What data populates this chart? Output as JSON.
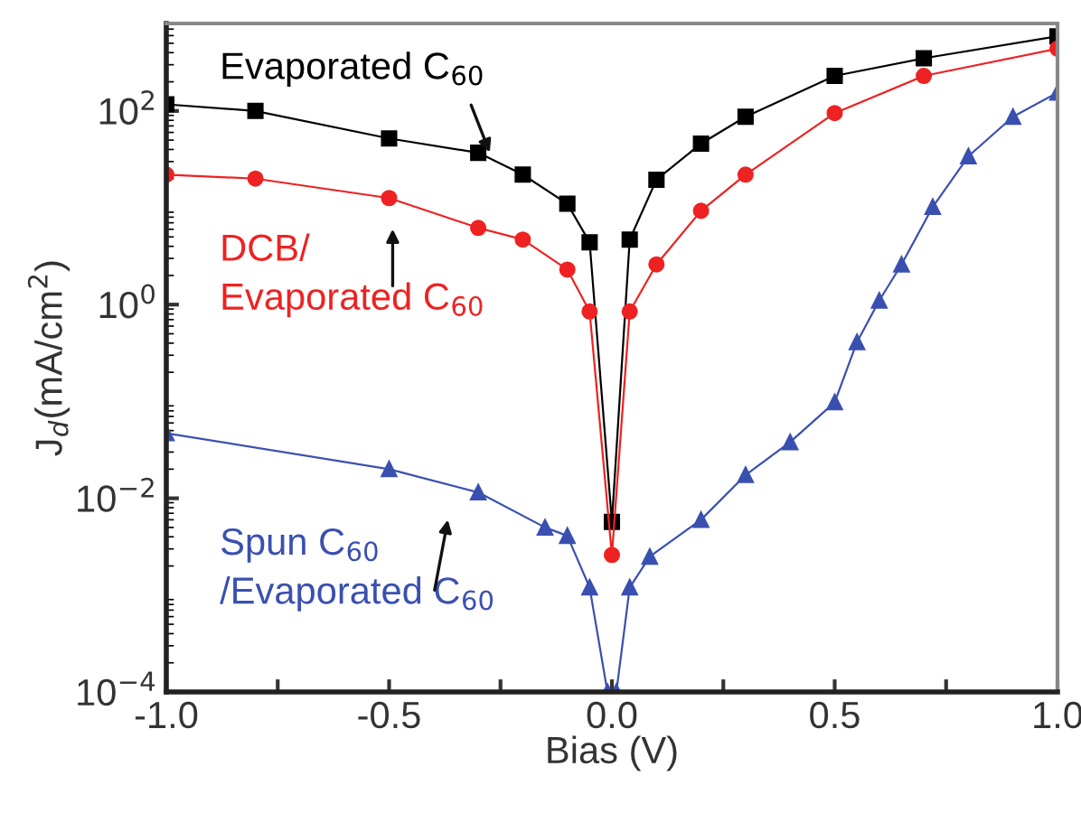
{
  "chart_data": {
    "type": "line",
    "xlabel": "Bias (V)",
    "ylabel": "J$_{d}$(mA/cm$^{2}$)",
    "log": "y",
    "grid": false,
    "line_style": "solid",
    "xlim": [
      -1.0,
      1.0
    ],
    "xticks": [
      {
        "value": -1.0,
        "label": "-1.0"
      },
      {
        "value": -0.75,
        "label": null
      },
      {
        "value": -0.5,
        "label": "-0.5"
      },
      {
        "value": -0.25,
        "label": null
      },
      {
        "value": 0.0,
        "label": "0.0"
      },
      {
        "value": 0.25,
        "label": null
      },
      {
        "value": 0.5,
        "label": "0.5"
      },
      {
        "value": 0.75,
        "label": null
      },
      {
        "value": 1.0,
        "label": "1.0"
      }
    ],
    "ylim": [
      0.0001,
      800
    ],
    "yticks": [
      {
        "value": 0.0001,
        "label": "10$^{−4}$"
      },
      {
        "value": 0.01,
        "label": "10$^{−2}$"
      },
      {
        "value": 1,
        "label": "10$^{0}$"
      },
      {
        "value": 100,
        "label": "10$^{2}$"
      }
    ],
    "series": [
      {
        "name": "Evaporated C$_{60}$",
        "color": "#000000",
        "marker": "square",
        "x": [
          -1.0,
          -0.8,
          -0.5,
          -0.3,
          -0.2,
          -0.1,
          -0.05,
          0.0,
          0.04,
          0.1,
          0.2,
          0.3,
          0.5,
          0.7,
          1.0
        ],
        "values": [
          117,
          100,
          52,
          37,
          22,
          11,
          4.4,
          0.0057,
          4.7,
          19.5,
          46,
          87,
          230,
          350,
          590
        ]
      },
      {
        "name": "DCB/\nEvaporated C$_{60}$",
        "color": "#ee2222",
        "marker": "circle",
        "x": [
          -1.0,
          -0.8,
          -0.5,
          -0.3,
          -0.2,
          -0.1,
          -0.05,
          0.0,
          0.04,
          0.1,
          0.2,
          0.3,
          0.5,
          0.7,
          1.0
        ],
        "values": [
          22,
          20,
          12.6,
          6.2,
          4.7,
          2.3,
          0.85,
          0.0026,
          0.85,
          2.6,
          9.3,
          22,
          95,
          230,
          440
        ]
      },
      {
        "name": "Spun C$_{60}$\n/Evaporated C$_{60}$",
        "color": "#3a50b0",
        "marker": "triangle",
        "x": [
          -1.0,
          -0.5,
          -0.3,
          -0.15,
          -0.1,
          -0.05,
          -0.01,
          0.01,
          0.04,
          0.085,
          0.2,
          0.3,
          0.4,
          0.5,
          0.55,
          0.6,
          0.65,
          0.72,
          0.8,
          0.9,
          1.0
        ],
        "values": [
          0.047,
          0.02,
          0.0115,
          0.005,
          0.0041,
          0.0012,
          0.0001,
          0.0001,
          0.0012,
          0.0025,
          0.006,
          0.0174,
          0.038,
          0.098,
          0.41,
          1.1,
          2.6,
          10.2,
          34,
          87,
          155
        ]
      }
    ]
  }
}
